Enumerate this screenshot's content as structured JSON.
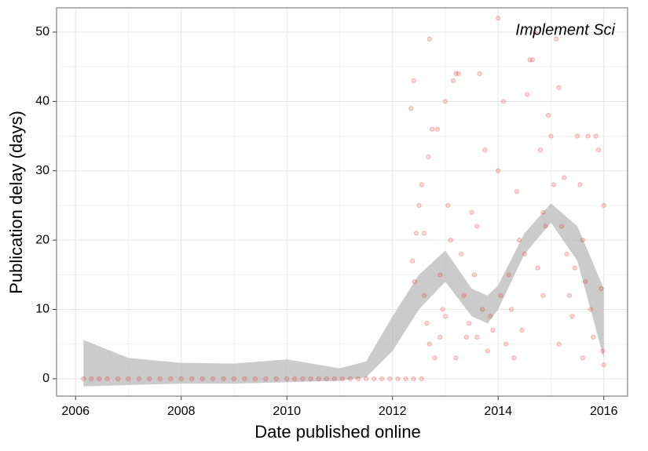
{
  "chart_data": {
    "type": "scatter",
    "annotation": "Implement Sci",
    "x_label": "Date published online",
    "y_label": "Publication delay (days)",
    "xlim": [
      2005.64,
      2016.45
    ],
    "ylim": [
      -2.5,
      53.5
    ],
    "xticks": [
      2006,
      2008,
      2010,
      2012,
      2014,
      2016
    ],
    "yticks": [
      0,
      10,
      20,
      30,
      40,
      50
    ],
    "grid": true,
    "series": [
      {
        "color": "#e8281e",
        "x": [
          2006.15,
          2006.3,
          2006.45,
          2006.6,
          2006.8,
          2007.0,
          2007.2,
          2007.4,
          2007.6,
          2007.8,
          2008.0,
          2008.2,
          2008.4,
          2008.6,
          2008.8,
          2009.0,
          2009.2,
          2009.4,
          2009.6,
          2009.8,
          2010.0,
          2010.15,
          2010.3,
          2010.45,
          2010.6,
          2010.75,
          2010.9,
          2011.05,
          2011.2,
          2011.35,
          2011.5,
          2011.65,
          2011.8,
          2011.95,
          2012.1,
          2012.25,
          2012.4,
          2012.55,
          2012.35,
          2012.4,
          2012.45,
          2012.38,
          2012.42,
          2012.5,
          2012.55,
          2012.6,
          2012.7,
          2012.75,
          2012.68,
          2012.6,
          2012.65,
          2012.7,
          2012.8,
          2012.85,
          2012.9,
          2012.95,
          2013.0,
          2013.05,
          2013.1,
          2013.15,
          2013.2,
          2013.25,
          2013.2,
          2013.3,
          2013.35,
          2013.4,
          2013.45,
          2013.5,
          2013.55,
          2013.6,
          2013.65,
          2013.7,
          2013.75,
          2013.8,
          2013.9,
          2014.0,
          2014.0,
          2014.05,
          2014.1,
          2014.15,
          2014.2,
          2014.3,
          2014.35,
          2014.4,
          2014.5,
          2014.55,
          2014.6,
          2014.65,
          2014.7,
          2014.75,
          2014.8,
          2014.85,
          2014.9,
          2014.95,
          2015.0,
          2015.05,
          2015.1,
          2015.15,
          2015.2,
          2015.25,
          2015.3,
          2015.35,
          2015.4,
          2015.5,
          2015.55,
          2015.6,
          2015.65,
          2015.7,
          2015.75,
          2015.8,
          2015.85,
          2015.9,
          2015.95,
          2016.0,
          2015.98,
          2016.0,
          2013.0,
          2013.6,
          2014.25,
          2014.85,
          2015.45,
          2012.9,
          2013.85,
          2014.45,
          2015.15,
          2015.6
        ],
        "values": [
          0,
          0,
          0,
          0,
          0,
          0,
          0,
          0,
          0,
          0,
          0,
          0,
          0,
          0,
          0,
          0,
          0,
          0,
          0,
          0,
          0,
          0,
          0,
          0,
          0,
          0,
          0,
          0,
          0,
          0,
          0,
          0,
          0,
          0,
          0,
          0,
          0,
          0,
          39,
          43,
          21,
          17,
          14,
          25,
          28,
          21,
          49,
          36,
          32,
          12,
          8,
          5,
          3,
          36,
          15,
          10,
          40,
          25,
          20,
          43,
          44,
          44,
          3,
          18,
          12,
          6,
          8,
          24,
          15,
          22,
          44,
          10,
          33,
          4,
          7,
          52,
          30,
          12,
          40,
          5,
          15,
          3,
          27,
          20,
          18,
          41,
          46,
          46,
          50,
          16,
          33,
          24,
          22,
          38,
          35,
          28,
          49,
          42,
          22,
          29,
          18,
          12,
          9,
          35,
          28,
          20,
          14,
          35,
          10,
          6,
          35,
          33,
          13,
          25,
          4,
          2,
          9,
          6,
          10,
          12,
          16,
          6,
          9,
          7,
          5,
          3
        ]
      }
    ],
    "band": {
      "color": "#bebebe",
      "x": [
        2006.15,
        2007,
        2008,
        2009,
        2010,
        2011,
        2011.5,
        2012,
        2012.5,
        2013,
        2013.5,
        2013.8,
        2014,
        2014.5,
        2015,
        2015.5,
        2016
      ],
      "upper": [
        5.6,
        3.0,
        2.3,
        2.2,
        2.8,
        1.5,
        2.5,
        9,
        15,
        18.5,
        13,
        12,
        13.5,
        21,
        25.3,
        22,
        13
      ],
      "lower": [
        -1.1,
        -0.9,
        -0.7,
        -0.7,
        -0.5,
        -0.3,
        0.2,
        4,
        10,
        14,
        9,
        8,
        10,
        18,
        22.5,
        17,
        3
      ]
    }
  }
}
